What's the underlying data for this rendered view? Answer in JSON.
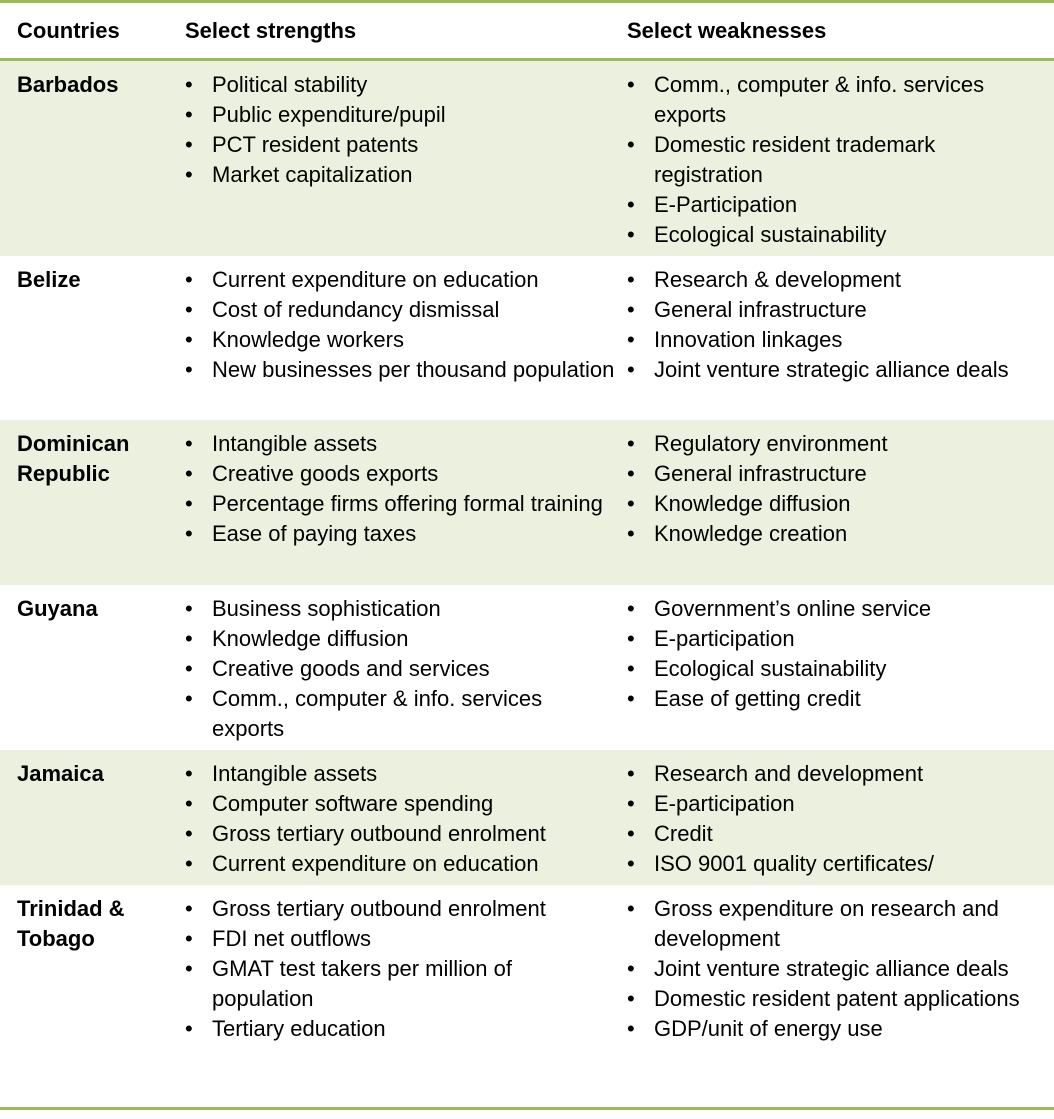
{
  "headers": {
    "country": "Countries",
    "strengths": "Select strengths",
    "weaknesses": "Select weaknesses"
  },
  "accent": "#9bbb59",
  "band": "#ebf1de",
  "rows": [
    {
      "country": "Barbados",
      "strengths": [
        "Political stability",
        "Public expenditure/pupil",
        "PCT resident patents",
        "Market capitalization"
      ],
      "weaknesses": [
        "Comm., computer & info. services exports",
        "Domestic resident trademark registration",
        "E-Participation",
        "Ecological sustainability"
      ]
    },
    {
      "country": "Belize",
      "strengths": [
        "Current expenditure on education",
        "Cost of redundancy dismissal",
        "Knowledge workers",
        "New businesses per thousand population"
      ],
      "weaknesses": [
        "Research & development",
        "General infrastructure",
        "Innovation linkages",
        "Joint venture strategic alliance deals"
      ]
    },
    {
      "country": "Dominican Republic",
      "strengths": [
        "Intangible assets",
        "Creative goods exports",
        "Percentage firms offering formal training",
        "Ease of paying taxes"
      ],
      "weaknesses": [
        "Regulatory environment",
        "General infrastructure",
        "Knowledge diffusion",
        "Knowledge creation"
      ]
    },
    {
      "country": "Guyana",
      "strengths": [
        "Business sophistication",
        "Knowledge diffusion",
        "Creative goods and services",
        "Comm., computer & info. services exports"
      ],
      "weaknesses": [
        "Government’s online service",
        "E-participation",
        "Ecological sustainability",
        "Ease of getting credit"
      ]
    },
    {
      "country": "Jamaica",
      "strengths": [
        "Intangible assets",
        "Computer software spending",
        "Gross tertiary outbound enrolment",
        "Current expenditure on education"
      ],
      "weaknesses": [
        "Research and development",
        "E-participation",
        "Credit",
        "ISO 9001 quality certificates/"
      ]
    },
    {
      "country": "Trinidad & Tobago",
      "strengths": [
        "Gross tertiary outbound enrolment",
        "FDI net outflows",
        "GMAT test takers per million of population",
        "Tertiary education"
      ],
      "weaknesses": [
        "Gross expenditure on research and development",
        "Joint venture strategic alliance deals",
        "Domestic resident patent applications",
        "GDP/unit of energy use"
      ]
    }
  ]
}
